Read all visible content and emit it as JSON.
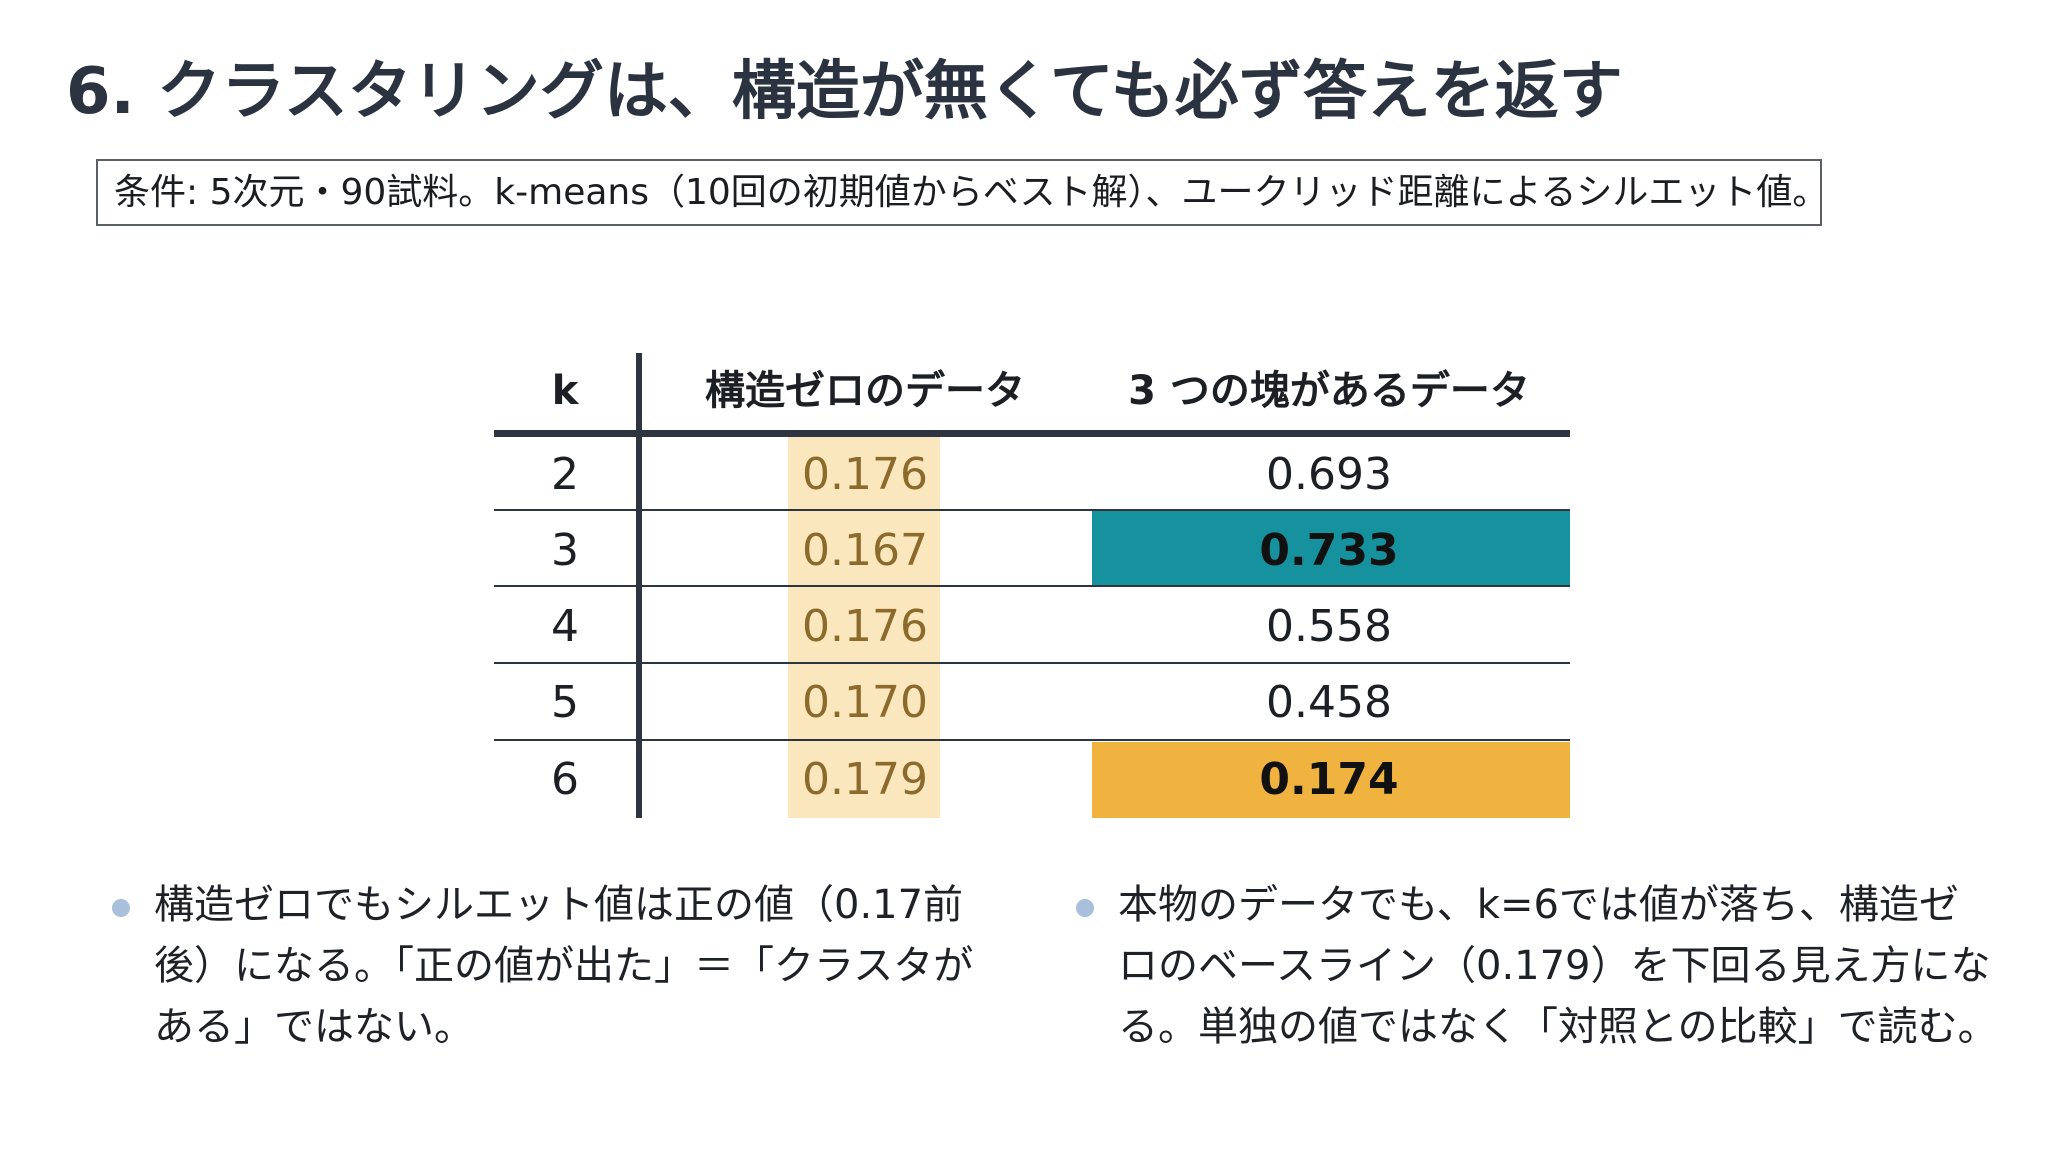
{
  "slide": {
    "title": "6. クラスタリングは、構造が無くても必ず答えを返す",
    "conditions": "条件: 5次元・90試料。k-means（10回の初期値からベスト解）、ユークリッド距離によるシルエット値。"
  },
  "table": {
    "headers": {
      "k": "k",
      "zero_structure": "構造ゼロのデータ",
      "three_clusters": "3 つの塊があるデータ"
    },
    "rows": [
      {
        "k": "2",
        "zero_structure": "0.176",
        "three_clusters": "0.693"
      },
      {
        "k": "3",
        "zero_structure": "0.167",
        "three_clusters": "0.733"
      },
      {
        "k": "4",
        "zero_structure": "0.176",
        "three_clusters": "0.558"
      },
      {
        "k": "5",
        "zero_structure": "0.170",
        "three_clusters": "0.458"
      },
      {
        "k": "6",
        "zero_structure": "0.179",
        "three_clusters": "0.174"
      }
    ],
    "colors": {
      "zero_column_fill": "#fbe7be",
      "best_cell_fill": "#16919e",
      "k6_cell_fill": "#f0b33f"
    }
  },
  "bullets": [
    "構造ゼロでもシルエット値は正の値（0.17前後）になる。「正の値が出た」＝「クラスタがある」ではない。",
    "本物のデータでも、k=6では値が落ち、構造ゼロのベースライン（0.179）を下回る見え方になる。単独の値ではなく「対照との比較」で読む。"
  ]
}
